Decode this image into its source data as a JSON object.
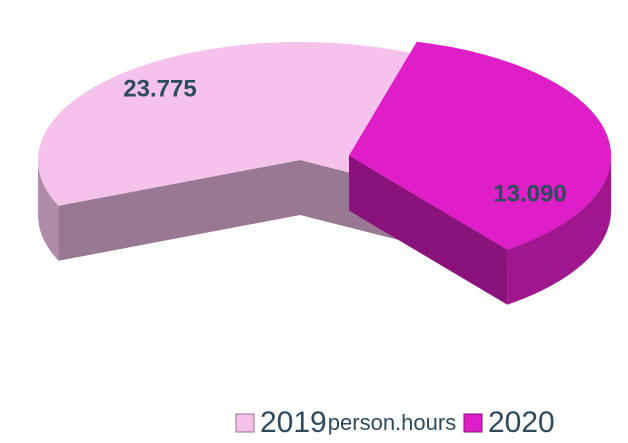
{
  "chart_data": {
    "type": "pie",
    "unit_label": "person.hours",
    "series": [
      {
        "name": "2019",
        "color": "#f5c2ec",
        "values": [
          23775
        ],
        "value_labels": [
          "23.775"
        ]
      },
      {
        "name": "2020",
        "color": "#de1ec6",
        "values": [
          13090
        ],
        "value_labels": [
          "13.090"
        ]
      }
    ]
  }
}
